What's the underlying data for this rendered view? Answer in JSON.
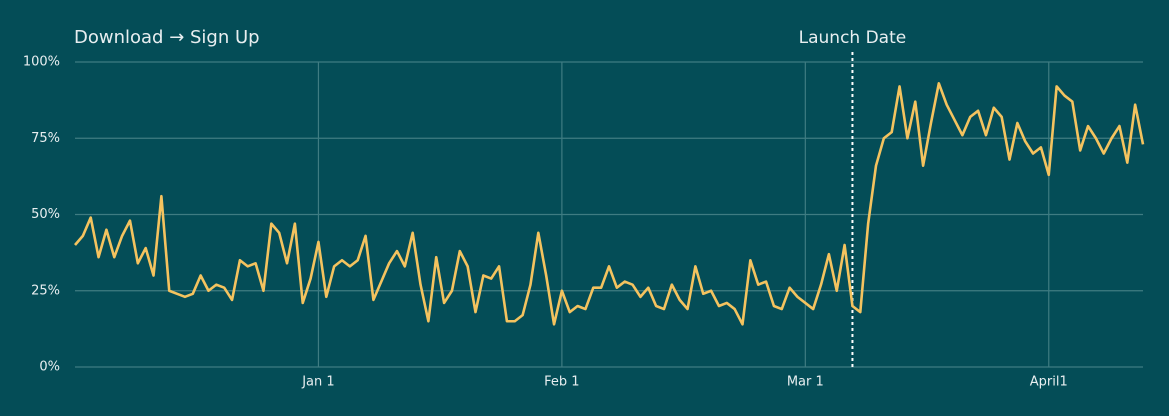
{
  "chart_data": {
    "type": "line",
    "title": "Download → Sign Up",
    "annotation": {
      "text": "Launch Date",
      "x": 68
    },
    "x": [
      -31,
      -30,
      -29,
      -28,
      -27,
      -26,
      -25,
      -24,
      -23,
      -22,
      -21,
      -20,
      -19,
      -18,
      -17,
      -16,
      -15,
      -14,
      -13,
      -12,
      -11,
      -10,
      -9,
      -8,
      -7,
      -6,
      -5,
      -4,
      -3,
      -2,
      -1,
      0,
      1,
      2,
      3,
      4,
      5,
      6,
      7,
      8,
      9,
      10,
      11,
      12,
      13,
      14,
      15,
      16,
      17,
      18,
      19,
      20,
      21,
      22,
      23,
      24,
      25,
      26,
      27,
      28,
      29,
      30,
      31,
      32,
      33,
      34,
      35,
      36,
      37,
      38,
      39,
      40,
      41,
      42,
      43,
      44,
      45,
      46,
      47,
      48,
      49,
      50,
      51,
      52,
      53,
      54,
      55,
      56,
      57,
      58,
      59,
      60,
      61,
      62,
      63,
      64,
      65,
      66,
      67,
      68,
      69,
      70,
      71,
      72,
      73,
      74,
      75,
      76,
      77,
      78,
      79,
      80,
      81,
      82,
      83,
      84,
      85,
      86,
      87,
      88,
      89,
      90,
      91,
      92,
      93,
      94,
      95,
      96,
      97,
      98,
      99,
      100,
      101,
      102,
      103,
      104,
      105
    ],
    "series": [
      {
        "color": "#f4c35f",
        "values": [
          40,
          43,
          49,
          36,
          45,
          36,
          43,
          48,
          34,
          39,
          30,
          56,
          25,
          24,
          23,
          24,
          30,
          25,
          27,
          26,
          22,
          35,
          33,
          34,
          25,
          47,
          44,
          34,
          47,
          21,
          29,
          41,
          23,
          33,
          35,
          33,
          35,
          43,
          22,
          28,
          34,
          38,
          33,
          44,
          27,
          15,
          36,
          21,
          25,
          38,
          33,
          18,
          30,
          29,
          33,
          15,
          15,
          17,
          27,
          44,
          30,
          14,
          25,
          18,
          20,
          19,
          26,
          26,
          33,
          26,
          28,
          27,
          23,
          26,
          20,
          19,
          27,
          22,
          19,
          33,
          24,
          25,
          20,
          21,
          19,
          14,
          35,
          27,
          28,
          20,
          19,
          26,
          23,
          21,
          19,
          27,
          37,
          25,
          40,
          20,
          18,
          47,
          66,
          75,
          77,
          92,
          75,
          87,
          66,
          80,
          93,
          86,
          81,
          76,
          82,
          84,
          76,
          85,
          82,
          68,
          80,
          74,
          70,
          72,
          63,
          92,
          89,
          87,
          71,
          79,
          75,
          70,
          75,
          79,
          67,
          86,
          73
        ]
      }
    ],
    "xlim": [
      -31,
      105
    ],
    "xticks": [
      {
        "value": 0,
        "label": "Jan 1"
      },
      {
        "value": 31,
        "label": "Feb 1"
      },
      {
        "value": 62,
        "label": "Mar 1"
      },
      {
        "value": 93,
        "label": "April1"
      }
    ],
    "ylim": [
      0,
      100
    ],
    "yticks": [
      {
        "value": 0,
        "label": "0%"
      },
      {
        "value": 25,
        "label": "25%"
      },
      {
        "value": 50,
        "label": "50%"
      },
      {
        "value": 75,
        "label": "75%"
      },
      {
        "value": 100,
        "label": "100%"
      }
    ],
    "grid": true
  }
}
